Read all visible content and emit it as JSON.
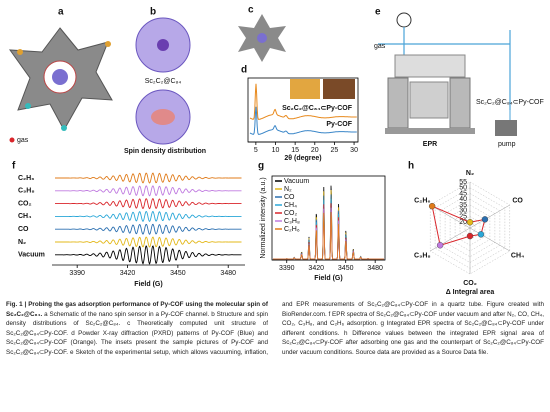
{
  "panels": {
    "a": {
      "label": "a",
      "legend": "gas"
    },
    "b": {
      "label": "b",
      "molecule": "Sc₂C₂@C₈₄",
      "caption": "Spin density distribution"
    },
    "c": {
      "label": "c"
    },
    "d": {
      "label": "d"
    },
    "e": {
      "label": "e",
      "gas": "gas",
      "instrument": "EPR",
      "pump": "pump",
      "sample": "Sc₂C₂@C₈₄⊂Py-COF"
    },
    "f": {
      "label": "f"
    },
    "g": {
      "label": "g"
    },
    "h": {
      "label": "h"
    }
  },
  "chart_data": [
    {
      "type": "line",
      "x_label": "2θ (degree)",
      "xlim": [
        3,
        31
      ],
      "xticks": [
        5,
        10,
        15,
        20,
        25,
        30
      ],
      "series": [
        {
          "name": "Sc₂C₂@C₈₄⊂Py-COF",
          "color": "#e8891c"
        },
        {
          "name": "Py-COF",
          "color": "#3a86c8"
        }
      ]
    },
    {
      "type": "spectra",
      "x_label": "Field (G)",
      "xlim": [
        3375,
        3490
      ],
      "xticks": [
        3390,
        3420,
        3450,
        3480
      ],
      "series": [
        {
          "name": "C₂H₆",
          "color": "#e07b1a"
        },
        {
          "name": "C₃H₈",
          "color": "#c07be0"
        },
        {
          "name": "CO₂",
          "color": "#d9262b"
        },
        {
          "name": "CH₄",
          "color": "#2aa7d8"
        },
        {
          "name": "CO",
          "color": "#2a6fb0"
        },
        {
          "name": "N₂",
          "color": "#e3b81a"
        },
        {
          "name": "Vacuum",
          "color": "#000000"
        }
      ]
    },
    {
      "type": "integrated",
      "x_label": "Field (G)",
      "y_label": "Normalized intensity (a.u.)",
      "xlim": [
        3375,
        3490
      ],
      "xticks": [
        3390,
        3420,
        3450,
        3480
      ],
      "series": [
        {
          "name": "Vacuum",
          "color": "#000000"
        },
        {
          "name": "N₂",
          "color": "#e3b81a"
        },
        {
          "name": "CO",
          "color": "#2a6fb0"
        },
        {
          "name": "CH₄",
          "color": "#2aa7d8"
        },
        {
          "name": "CO₂",
          "color": "#d9262b"
        },
        {
          "name": "C₃H₈",
          "color": "#c07be0"
        },
        {
          "name": "C₂H₆",
          "color": "#e07b1a"
        }
      ]
    },
    {
      "type": "radar",
      "x_label": "Δ Integral area",
      "categories": [
        "N₂",
        "CO",
        "CH₄",
        "CO₂",
        "C₃H₈",
        "C₂H₆"
      ],
      "values": [
        20,
        30,
        26,
        22,
        45,
        53
      ],
      "colors": [
        "#e3b81a",
        "#2a6fb0",
        "#2aa7d8",
        "#d9262b",
        "#c07be0",
        "#e07b1a"
      ],
      "rlim": [
        15,
        55
      ],
      "rticks": [
        20,
        25,
        30,
        35,
        40,
        45,
        50,
        55
      ]
    }
  ],
  "caption": {
    "title": "Fig. 1 | Probing the gas adsorption performance of Py-COF using the molecular spin of Sc₂C₂@C₈₄.",
    "body": "a Schematic of the nano spin sensor in a Py-COF channel. b Structure and spin density distributions of Sc₂C₂@C₈₄. c Theoretically computed unit structure of Sc₂C₂@C₈₄⊂Py-COF. d Powder X-ray diffraction (PXRD) patterns of Py-COF (Blue) and Sc₂C₂@C₈₄⊂Py-COF (Orange). The insets present the sample pictures of Py-COF and Sc₂C₂@C₈₄⊂Py-COF. e Sketch of the experimental setup, which allows vacuuming, inflation, and EPR measurements of Sc₂C₂@C₈₄⊂Py-COF in a quartz tube. Figure created with BioRender.com. f EPR spectra of Sc₂C₂@C₈₄⊂Py-COF under vacuum and after N₂, CO, CH₄, CO₂, C₃H₈, and C₂H₆ adsorption. g Integrated EPR spectra of Sc₂C₂@C₈₄⊂Py-COF under different conditions. h Difference values between the integrated EPR signal area of Sc₂C₂@C₈₄⊂Py-COF after adsorbing one gas and the counterpart of Sc₂C₂@C₈₄⊂Py-COF under vacuum conditions. Source data are provided as a Source Data file."
  }
}
